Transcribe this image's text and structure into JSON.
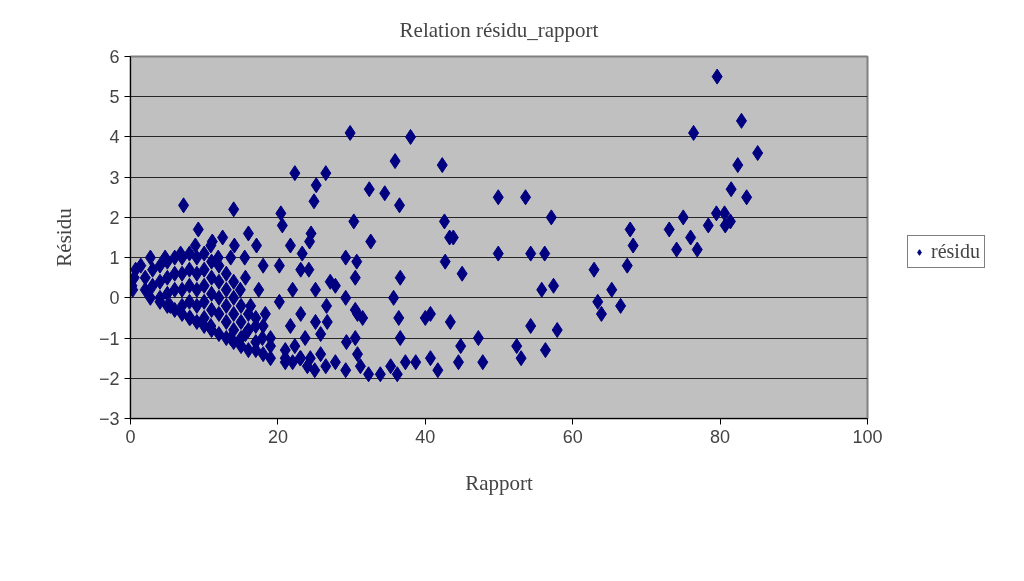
{
  "chart_data": {
    "type": "scatter",
    "title": "Relation résidu_rapport",
    "xlabel": "Rapport",
    "ylabel": "Résidu",
    "xlim": [
      0,
      100
    ],
    "xticks": [
      0,
      20,
      40,
      60,
      80,
      100
    ],
    "ylim": [
      -3,
      6
    ],
    "yticks": [
      -3,
      -2,
      -1,
      0,
      1,
      2,
      3,
      4,
      5,
      6
    ],
    "grid": "y",
    "legend": "right",
    "marker": "diamond",
    "series": [
      {
        "name": "résidu",
        "color": "#000080",
        "x": [
          79.6,
          82.9,
          76.4,
          85.1,
          82.4,
          83.6,
          81.5,
          79.5,
          80.6,
          81.4,
          80.7,
          78.4,
          75.0,
          76.0,
          73.1,
          74.1,
          76.9,
          67.8,
          68.2,
          67.4,
          62.9,
          63.4,
          65.3,
          66.5,
          63.9,
          49.9,
          53.6,
          57.1,
          49.9,
          54.3,
          56.2,
          55.8,
          57.4,
          45.0,
          42.7,
          42.6,
          43.3,
          43.8,
          42.3,
          38.0,
          29.8,
          35.9,
          34.5,
          32.4,
          30.3,
          36.5,
          32.6,
          36.6,
          35.7,
          36.4,
          36.6,
          40.0,
          40.7,
          43.4,
          47.2,
          52.4,
          53.0,
          56.3,
          57.9,
          54.3,
          47.8,
          44.8,
          44.5,
          41.7,
          40.7,
          38.7,
          37.3,
          36.2,
          35.3,
          33.9,
          32.3,
          31.2,
          30.8,
          29.2,
          27.8,
          26.5,
          29.3,
          30.5,
          31.5,
          30.5,
          29.2,
          30.5,
          29.2,
          30.7,
          30.8,
          26.5,
          22.3,
          24.9,
          25.2,
          24.5,
          24.3,
          23.3,
          21.7,
          20.4,
          20.6,
          20.2,
          23.1,
          24.2,
          25.1,
          27.1,
          27.8,
          26.6,
          26.7,
          25.8,
          23.7,
          25.1,
          23.1,
          22.0,
          21.7,
          22.3,
          23.1,
          24.4,
          25.8,
          21.0,
          19.0,
          18.3,
          20.2,
          17.4,
          18.0,
          17.1,
          16.0,
          14.0,
          7.2,
          9.2,
          12.5,
          11.1,
          14.1,
          11.9,
          15.5,
          15.6,
          14.9,
          16.3,
          17.0,
          17.9,
          15.6,
          0.7,
          1.4,
          2.7,
          4.7,
          6.8,
          8.8,
          10.9,
          13.6,
          0.3,
          2.7,
          5.4,
          8.1,
          10.9,
          13.6,
          21.0,
          0.2,
          0.5,
          2,
          2,
          3,
          3,
          4,
          4,
          4,
          4,
          5,
          5,
          5,
          5,
          6,
          6,
          6,
          6,
          7,
          7,
          7,
          7,
          7,
          8,
          8,
          8,
          8,
          8,
          9,
          9,
          9,
          9,
          9,
          10,
          10,
          10,
          10,
          10,
          10,
          11,
          11,
          11,
          11,
          11,
          12,
          12,
          12,
          12,
          12,
          13,
          13,
          13,
          13,
          13,
          14,
          14,
          14,
          14,
          14,
          15,
          15,
          15,
          15,
          16,
          16,
          16,
          17,
          17,
          17,
          18,
          18,
          19,
          19,
          21,
          22,
          23,
          24,
          25
        ],
        "values": [
          5.5,
          4.4,
          4.1,
          3.6,
          3.3,
          2.5,
          2.7,
          2.1,
          2.1,
          1.9,
          1.8,
          1.8,
          2.0,
          1.5,
          1.7,
          1.2,
          1.2,
          1.7,
          1.3,
          0.8,
          0.7,
          -0.1,
          0.2,
          -0.2,
          -0.4,
          2.5,
          2.5,
          2.0,
          1.1,
          1.1,
          1.1,
          0.2,
          0.3,
          0.6,
          0.9,
          1.9,
          1.5,
          1.5,
          3.3,
          4.0,
          4.1,
          3.4,
          2.6,
          2.7,
          1.9,
          2.3,
          1.4,
          0.5,
          0.0,
          -0.5,
          -1.0,
          -0.5,
          -0.4,
          -0.6,
          -1.0,
          -1.2,
          -1.5,
          -1.3,
          -0.8,
          -0.7,
          -1.6,
          -1.2,
          -1.6,
          -1.8,
          -1.5,
          -1.6,
          -1.6,
          -1.9,
          -1.7,
          -1.9,
          -1.9,
          -1.7,
          -1.4,
          -1.8,
          -1.6,
          -1.7,
          -1.1,
          -1.0,
          -0.5,
          -0.3,
          0.0,
          0.5,
          1.0,
          0.9,
          -0.4,
          3.1,
          3.1,
          2.4,
          2.8,
          1.6,
          1.4,
          1.1,
          1.3,
          2.1,
          1.8,
          0.8,
          0.7,
          0.7,
          0.2,
          0.4,
          0.3,
          -0.2,
          -0.6,
          -0.9,
          -1.0,
          -0.6,
          -0.4,
          0.2,
          -0.7,
          -1.2,
          -1.5,
          -1.5,
          -1.4,
          -1.3,
          -1.0,
          -0.4,
          -0.1,
          0.2,
          0.8,
          1.3,
          1.6,
          2.2,
          2.3,
          1.7,
          1.5,
          1.4,
          1.3,
          1.0,
          1.0,
          0.5,
          0.2,
          -0.2,
          -0.7,
          -1.0,
          -0.9,
          0.7,
          0.8,
          1.0,
          1.0,
          1.1,
          1.3,
          1.3,
          1.0,
          0.2,
          0.0,
          -0.2,
          -0.5,
          -0.7,
          -1.0,
          -1.5,
          0.3,
          0.5,
          0.5,
          0.2,
          0.7,
          0.3,
          0.8,
          0.4,
          0.0,
          -0.1,
          0.9,
          0.5,
          0.1,
          -0.2,
          1.0,
          0.6,
          0.2,
          -0.3,
          1.0,
          0.6,
          0.2,
          -0.2,
          -0.4,
          1.1,
          0.7,
          0.3,
          -0.1,
          -0.5,
          1.0,
          0.6,
          0.2,
          -0.2,
          -0.6,
          1.1,
          0.7,
          0.3,
          -0.1,
          -0.5,
          -0.7,
          0.9,
          0.5,
          0.1,
          -0.3,
          -0.8,
          0.8,
          0.4,
          0.0,
          -0.4,
          -0.9,
          0.6,
          0.2,
          -0.2,
          -0.6,
          -1.0,
          0.4,
          0.0,
          -0.4,
          -0.8,
          -1.1,
          -0.2,
          -0.6,
          -1.0,
          -1.2,
          -0.4,
          -0.8,
          -1.3,
          -0.5,
          -1.1,
          -1.3,
          -0.7,
          -1.4,
          -1.2,
          -1.5,
          -1.6,
          -1.6,
          -1.5,
          -1.7,
          -1.8
        ]
      }
    ]
  }
}
